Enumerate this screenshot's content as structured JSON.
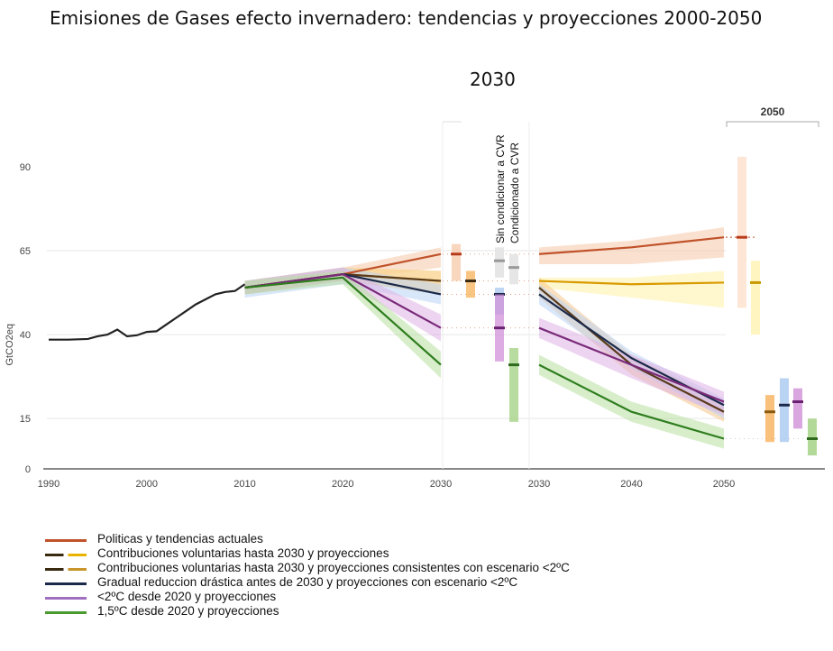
{
  "chart_data": {
    "type": "line",
    "title": "Emisiones de Gases efecto invernadero: tendencias y proyecciones 2000-2050",
    "subtitle": "2030",
    "panel_label_2050": "2050",
    "ylabel": "GtCO2eq",
    "xlabel": "",
    "ylim": [
      0,
      90
    ],
    "yticks": [
      0,
      15,
      40,
      65,
      90
    ],
    "xticks_left": [
      "1990",
      "2000",
      "2010",
      "2020",
      "2030"
    ],
    "xticks_right": [
      "2030",
      "2040",
      "2050"
    ],
    "grid": true,
    "historical": {
      "x": [
        1990,
        1992,
        1994,
        1995,
        1996,
        1997,
        1998,
        1999,
        2000,
        2001,
        2002,
        2003,
        2004,
        2005,
        2006,
        2007,
        2008,
        2009,
        2010
      ],
      "y": [
        38.5,
        38.5,
        38.7,
        39.5,
        40,
        41.5,
        39.5,
        39.8,
        40.8,
        41,
        43,
        45,
        47,
        49,
        50.5,
        52,
        52.7,
        53,
        55
      ]
    },
    "series": [
      {
        "name": "Politicas y tendencias actuales",
        "color": "#c0522a",
        "band": "#f5c9a8",
        "left": {
          "x": [
            2010,
            2020,
            2030
          ],
          "y": [
            54,
            58,
            64
          ],
          "lo": [
            52,
            56,
            60
          ],
          "hi": [
            56,
            60,
            66
          ]
        },
        "right": {
          "x": [
            2030,
            2040,
            2050
          ],
          "y": [
            64,
            66,
            69
          ],
          "lo": [
            61,
            61,
            63
          ],
          "hi": [
            66,
            68,
            72
          ]
        },
        "bar2030": {
          "mid": 64,
          "lo": 56,
          "hi": 67
        },
        "bar2050": {
          "mid": 69,
          "lo": 48,
          "hi": 93
        }
      },
      {
        "name": "Contribuciones voluntarias hasta 2030 y proyecciones",
        "color": "#d99a00",
        "band": "#fff2a8",
        "left": {
          "x": [
            2010,
            2020,
            2030
          ],
          "y": [
            54,
            58,
            56
          ],
          "lo": [
            52,
            56,
            52
          ],
          "hi": [
            56,
            60,
            59
          ]
        },
        "right": {
          "x": [
            2030,
            2040,
            2050
          ],
          "y": [
            56,
            55,
            55.5
          ],
          "lo": [
            54,
            51,
            48
          ],
          "hi": [
            57,
            57,
            59
          ]
        },
        "bar2030": {
          "mid": 56,
          "lo": 51,
          "hi": 59
        },
        "bar2050": {
          "mid": 55.5,
          "lo": 40,
          "hi": 62
        }
      },
      {
        "name": "Contribuciones voluntarias hasta 2030 y proyecciones consistentes con escenario <2ºC",
        "color": "#5a3a1a",
        "band": "#f6c68a",
        "left": {
          "x": [
            2010,
            2020,
            2030
          ],
          "y": [
            54,
            58,
            56
          ],
          "lo": [
            52,
            56,
            52
          ],
          "hi": [
            56,
            60,
            59
          ]
        },
        "right": {
          "x": [
            2030,
            2040,
            2050
          ],
          "y": [
            54,
            31,
            17
          ],
          "lo": [
            51,
            28,
            14
          ],
          "hi": [
            57,
            34,
            20
          ]
        },
        "bar2030": {
          "mid": 56,
          "lo": 51,
          "hi": 59
        },
        "bar2050": {
          "mid": 17,
          "lo": 8,
          "hi": 22
        }
      },
      {
        "name": "Gradual reduccion drástica antes de 2030 y proyecciones con escenario <2ºC",
        "color": "#1b2a4a",
        "band": "#b9d4f5",
        "left": {
          "x": [
            2010,
            2020,
            2030
          ],
          "y": [
            54,
            58,
            52
          ],
          "lo": [
            51,
            55,
            49
          ],
          "hi": [
            56,
            60,
            55
          ]
        },
        "right": {
          "x": [
            2030,
            2040,
            2050
          ],
          "y": [
            52,
            33,
            19
          ],
          "lo": [
            49,
            30,
            15
          ],
          "hi": [
            55,
            35,
            21
          ]
        },
        "bar2030": {
          "mid": 52,
          "lo": 46,
          "hi": 54
        },
        "bar2050": {
          "mid": 19,
          "lo": 8,
          "hi": 27
        }
      },
      {
        "name": "<2ºC desde 2020 y proyecciones",
        "color": "#7a2a7a",
        "band": "#dfb3e6",
        "left": {
          "x": [
            2010,
            2020,
            2030
          ],
          "y": [
            54,
            58,
            42
          ],
          "lo": [
            52,
            56,
            38
          ],
          "hi": [
            56,
            60,
            46
          ]
        },
        "right": {
          "x": [
            2030,
            2040,
            2050
          ],
          "y": [
            42,
            31,
            20
          ],
          "lo": [
            39,
            27,
            16
          ],
          "hi": [
            45,
            34,
            23
          ]
        },
        "bar2030": {
          "mid": 42,
          "lo": 32,
          "hi": 52
        },
        "bar2050": {
          "mid": 20,
          "lo": 12,
          "hi": 24
        }
      },
      {
        "name": "1,5ºC desde 2020 y proyecciones",
        "color": "#2e7d1e",
        "band": "#b8e0a0",
        "left": {
          "x": [
            2010,
            2020,
            2030
          ],
          "y": [
            54,
            57,
            31
          ],
          "lo": [
            52,
            55,
            27
          ],
          "hi": [
            56,
            59,
            35
          ]
        },
        "right": {
          "x": [
            2030,
            2040,
            2050
          ],
          "y": [
            31,
            17,
            9
          ],
          "lo": [
            28,
            14,
            6
          ],
          "hi": [
            34,
            20,
            12
          ]
        },
        "bar2030": {
          "mid": 31,
          "lo": 14,
          "hi": 36
        },
        "bar2050": {
          "mid": 9,
          "lo": 4,
          "hi": 15
        }
      }
    ],
    "annotations": [
      "Sin condicionar a CVR",
      "Condicionado a CVR"
    ],
    "legend": {
      "placement": "bottom-left",
      "entries": [
        {
          "label": "Politicas y tendencias actuales",
          "colors": [
            "#c0522a"
          ]
        },
        {
          "label": "Contribuciones voluntarias hasta 2030 y proyecciones",
          "colors": [
            "#3a2a10",
            "#e8b400"
          ]
        },
        {
          "label": "Contribuciones voluntarias hasta 2030 y proyecciones consistentes con escenario <2ºC",
          "colors": [
            "#3a2a10",
            "#c8962a"
          ]
        },
        {
          "label": "Gradual reduccion drástica antes de 2030 y proyecciones con escenario <2ºC",
          "colors": [
            "#1b2a4a"
          ]
        },
        {
          "label": "<2ºC desde 2020 y proyecciones",
          "colors": [
            "#a070c0"
          ]
        },
        {
          "label": "1,5ºC desde 2020 y proyecciones",
          "colors": [
            "#4a9a30"
          ]
        }
      ]
    }
  }
}
